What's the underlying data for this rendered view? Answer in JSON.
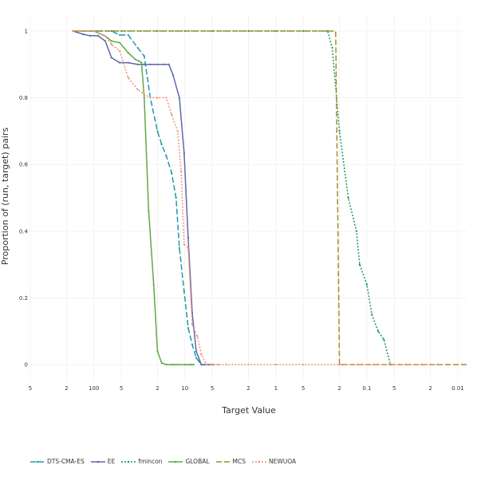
{
  "chart_data": {
    "type": "line",
    "xlabel": "Target Value",
    "ylabel": "Proportion of (run, target) pairs",
    "x_scale": "log-reversed",
    "xlim": [
      500,
      0.008
    ],
    "ylim": [
      -0.05,
      1.05
    ],
    "x_ticks": [
      {
        "value": 500,
        "label": "5"
      },
      {
        "value": 200,
        "label": "2"
      },
      {
        "value": 100,
        "label": "100"
      },
      {
        "value": 50,
        "label": "5"
      },
      {
        "value": 20,
        "label": "2"
      },
      {
        "value": 10,
        "label": "10"
      },
      {
        "value": 5,
        "label": "5"
      },
      {
        "value": 2,
        "label": "2"
      },
      {
        "value": 1,
        "label": "1"
      },
      {
        "value": 0.5,
        "label": "5"
      },
      {
        "value": 0.2,
        "label": "2"
      },
      {
        "value": 0.1,
        "label": "0.1"
      },
      {
        "value": 0.05,
        "label": "5"
      },
      {
        "value": 0.02,
        "label": "2"
      },
      {
        "value": 0.01,
        "label": "0.01"
      }
    ],
    "y_ticks": [
      {
        "value": 0,
        "label": "0"
      },
      {
        "value": 0.2,
        "label": "0.2"
      },
      {
        "value": 0.4,
        "label": "0.4"
      },
      {
        "value": 0.6,
        "label": "0.6"
      },
      {
        "value": 0.8,
        "label": "0.8"
      },
      {
        "value": 1,
        "label": "1"
      }
    ],
    "grid": true,
    "legend_position": "bottom",
    "series": [
      {
        "name": "DTS-CMA-ES",
        "color": "#1f9aab",
        "dash": "7,3",
        "marker": "circle",
        "x": [
          170,
          100,
          64,
          52,
          42,
          33,
          28,
          24,
          20,
          18,
          16,
          14,
          12.5,
          11.5,
          10.2,
          9.2,
          8.3,
          7.5,
          6.6,
          6.0,
          5.3,
          4.8
        ],
        "y": [
          1,
          1,
          1,
          0.988,
          0.988,
          0.95,
          0.925,
          0.8,
          0.7,
          0.66,
          0.625,
          0.575,
          0.5,
          0.35,
          0.22,
          0.11,
          0.06,
          0.02,
          0,
          0,
          0,
          0
        ]
      },
      {
        "name": "EE",
        "color": "#5b6aa8",
        "dash": "",
        "marker": "circle",
        "x": [
          170,
          130,
          110,
          90,
          75,
          64,
          52,
          42,
          33,
          28,
          24,
          20,
          17,
          15,
          13.5,
          11.5,
          10.2,
          9.2,
          8.3,
          7.5,
          6.6,
          5.5,
          4.8
        ],
        "y": [
          1,
          0.99,
          0.986,
          0.986,
          0.97,
          0.92,
          0.905,
          0.905,
          0.9,
          0.9,
          0.9,
          0.9,
          0.9,
          0.9,
          0.868,
          0.8,
          0.635,
          0.38,
          0.155,
          0.04,
          0,
          0,
          0
        ]
      },
      {
        "name": "fmincon",
        "color": "#1a9a55",
        "dash": "2,2",
        "marker": "circle",
        "x": [
          170,
          100,
          50,
          20,
          10,
          5,
          2,
          1,
          0.5,
          0.27,
          0.24,
          0.2,
          0.16,
          0.13,
          0.12,
          0.1,
          0.088,
          0.075,
          0.065,
          0.055
        ],
        "y": [
          1,
          1,
          1,
          1,
          1,
          1,
          1,
          1,
          1,
          1,
          0.95,
          0.7,
          0.5,
          0.4,
          0.3,
          0.24,
          0.15,
          0.1,
          0.075,
          0
        ]
      },
      {
        "name": "GLOBAL",
        "color": "#5ea84b",
        "dash": "",
        "marker": "circle",
        "x": [
          170,
          100,
          75,
          64,
          52,
          42,
          35,
          32,
          30,
          28,
          25,
          22,
          20,
          18,
          16,
          14,
          13,
          12,
          10,
          9,
          8.5,
          8
        ],
        "y": [
          1,
          1,
          0.985,
          0.97,
          0.965,
          0.935,
          0.915,
          0.91,
          0.905,
          0.8,
          0.46,
          0.24,
          0.04,
          0.005,
          0,
          0,
          0,
          0,
          0,
          0,
          0,
          0
        ]
      },
      {
        "name": "MCS",
        "color": "#a98a2c",
        "dash": "7,3",
        "marker": "none",
        "x": [
          170,
          0.27,
          0.22,
          0.2,
          0.008
        ],
        "y": [
          1,
          1,
          1,
          0,
          0
        ]
      },
      {
        "name": "NEWUOA",
        "color": "#f2917a",
        "dash": "2,2",
        "marker": "circle",
        "x": [
          170,
          100,
          75,
          64,
          52,
          42,
          33,
          28,
          24,
          20,
          16,
          14,
          12,
          11,
          10.2,
          9.2,
          8.3,
          7.3,
          6.6,
          5.8,
          5.2,
          4.8,
          4.3,
          3.5,
          2,
          1,
          0.5,
          0.2,
          0.1,
          0.05,
          0.02,
          0.015
        ],
        "y": [
          1,
          1,
          0.985,
          0.96,
          0.94,
          0.86,
          0.825,
          0.81,
          0.8,
          0.8,
          0.8,
          0.75,
          0.7,
          0.58,
          0.36,
          0.35,
          0.12,
          0.085,
          0.03,
          0,
          0,
          0,
          0,
          0,
          0,
          0,
          0,
          0,
          0,
          0,
          0,
          0
        ]
      }
    ]
  }
}
